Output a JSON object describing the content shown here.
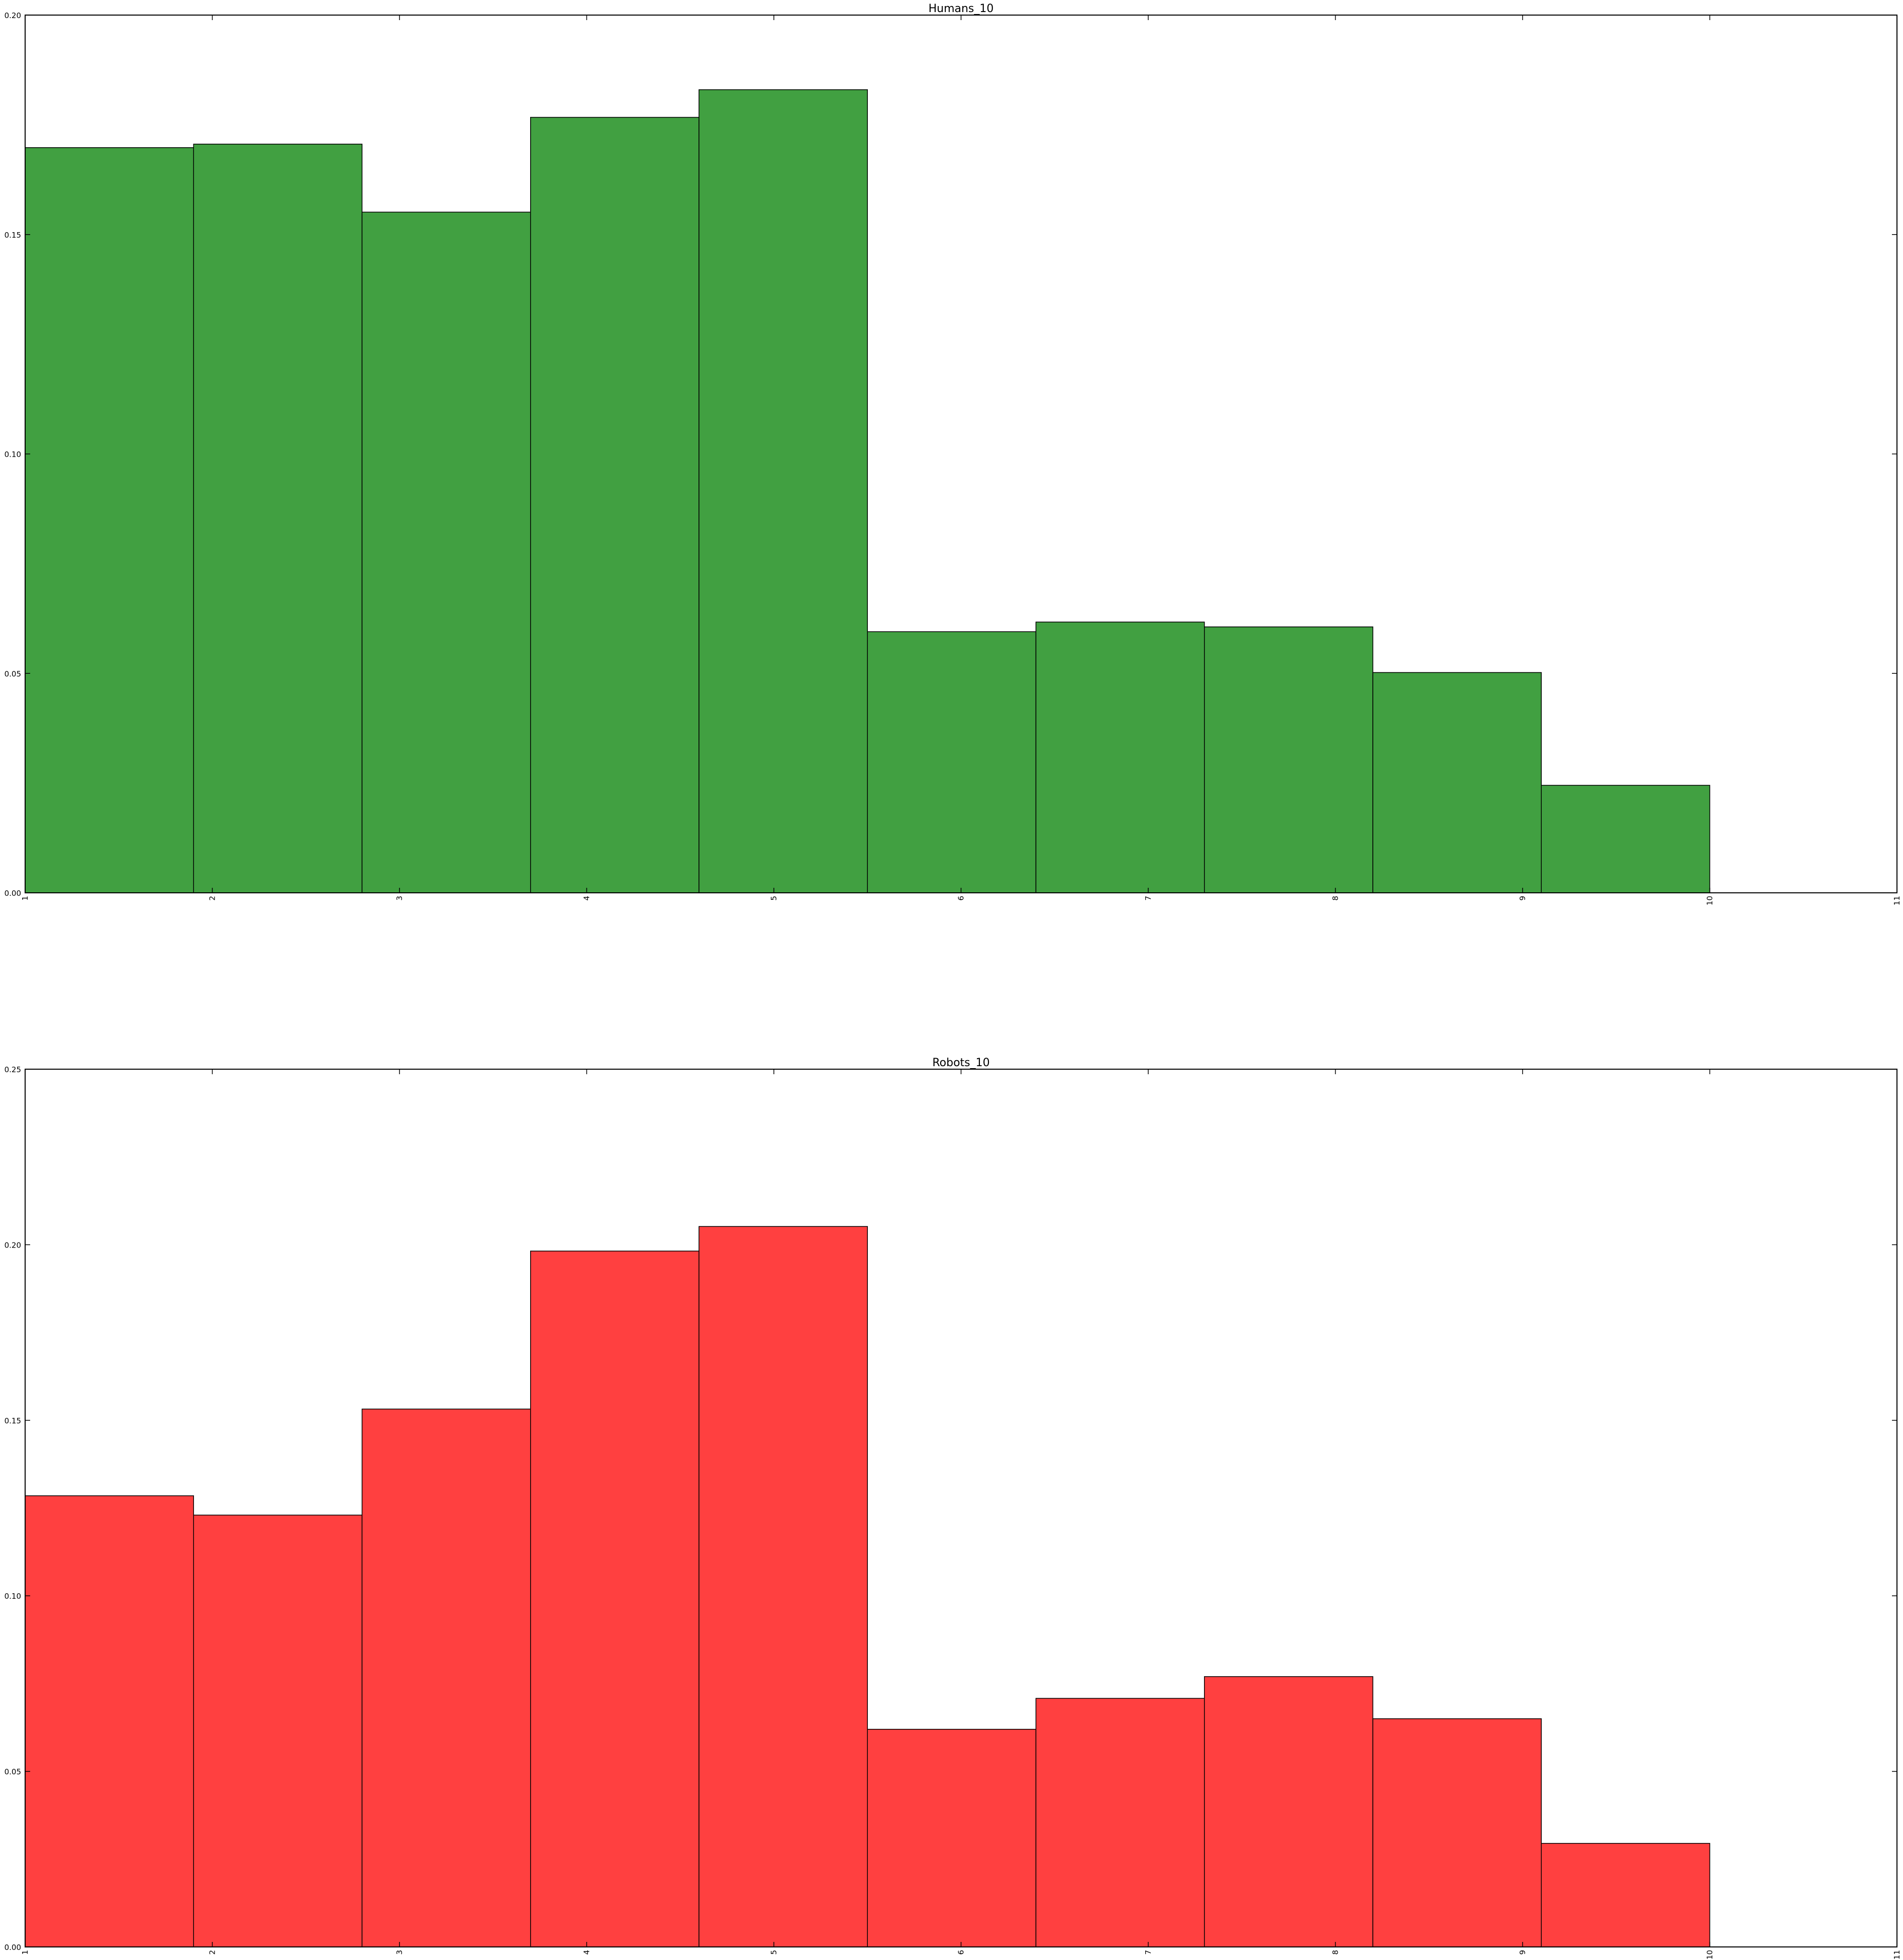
{
  "chart_data": [
    {
      "type": "bar",
      "title": "Humans_10",
      "xlabel": "",
      "ylabel": "",
      "bin_edges": [
        1,
        1.9,
        2.8,
        3.7,
        4.6,
        5.5,
        6.4,
        7.3,
        8.2,
        9.1,
        10
      ],
      "values": [
        0.1698,
        0.1706,
        0.1551,
        0.1767,
        0.183,
        0.0595,
        0.0617,
        0.0606,
        0.0502,
        0.0245
      ],
      "xlim": [
        1,
        11
      ],
      "ylim": [
        0,
        0.2
      ],
      "x_ticks": [
        "1",
        "2",
        "3",
        "4",
        "5",
        "6",
        "7",
        "8",
        "9",
        "10",
        "11"
      ],
      "y_ticks": [
        "0.00",
        "0.05",
        "0.10",
        "0.15",
        "0.20"
      ],
      "bar_color": "#41a041",
      "grid": false
    },
    {
      "type": "bar",
      "title": "Robots_10",
      "xlabel": "",
      "ylabel": "",
      "bin_edges": [
        1,
        1.9,
        2.8,
        3.7,
        4.6,
        5.5,
        6.4,
        7.3,
        8.2,
        9.1,
        10
      ],
      "values": [
        0.1285,
        0.123,
        0.1532,
        0.1982,
        0.2052,
        0.062,
        0.0708,
        0.077,
        0.065,
        0.0295
      ],
      "xlim": [
        1,
        11
      ],
      "ylim": [
        0,
        0.25
      ],
      "x_ticks": [
        "1",
        "2",
        "3",
        "4",
        "5",
        "6",
        "7",
        "8",
        "9",
        "10",
        "11"
      ],
      "y_ticks": [
        "0.00",
        "0.05",
        "0.10",
        "0.15",
        "0.20",
        "0.25"
      ],
      "bar_color": "#ff4040",
      "grid": false
    }
  ]
}
